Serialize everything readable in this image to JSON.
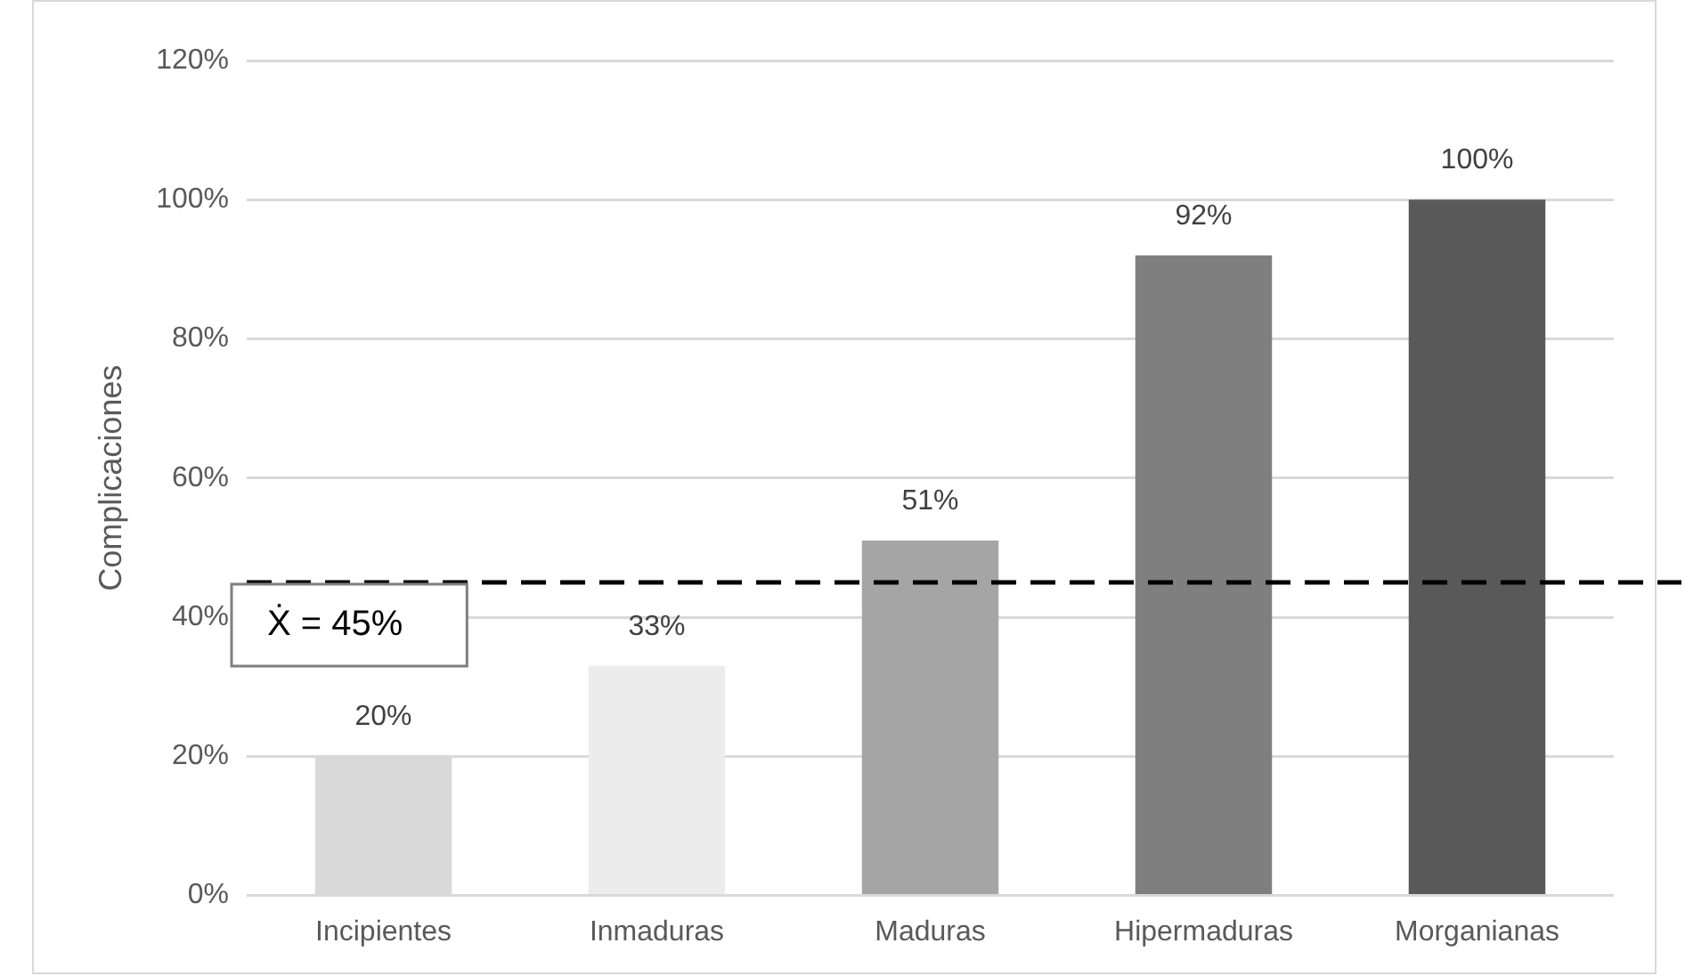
{
  "chart_data": {
    "type": "bar",
    "ylabel": "Complicaciones",
    "categories": [
      "Incipientes",
      "Inmaduras",
      "Maduras",
      "Hipermaduras",
      "Morganianas"
    ],
    "values": [
      20,
      33,
      51,
      92,
      100
    ],
    "colors": [
      "#d9d9d9",
      "#ececec",
      "#a5a5a5",
      "#7f7f7f",
      "#595959"
    ],
    "value_labels": [
      "20%",
      "33%",
      "51%",
      "92%",
      "100%"
    ],
    "ylim": [
      0,
      120
    ],
    "yticks": [
      {
        "value": 0,
        "label": "0%"
      },
      {
        "value": 20,
        "label": "20%"
      },
      {
        "value": 40,
        "label": "40%"
      },
      {
        "value": 60,
        "label": "60%"
      },
      {
        "value": 80,
        "label": "80%"
      },
      {
        "value": 100,
        "label": "100%"
      },
      {
        "value": 120,
        "label": "120%"
      }
    ],
    "grid": "y",
    "legend": false,
    "ref_lines": [
      {
        "axis": "y",
        "value": 45,
        "label": "Ẋ = 45%",
        "color": "#000000",
        "line_style": "dashed"
      }
    ]
  }
}
